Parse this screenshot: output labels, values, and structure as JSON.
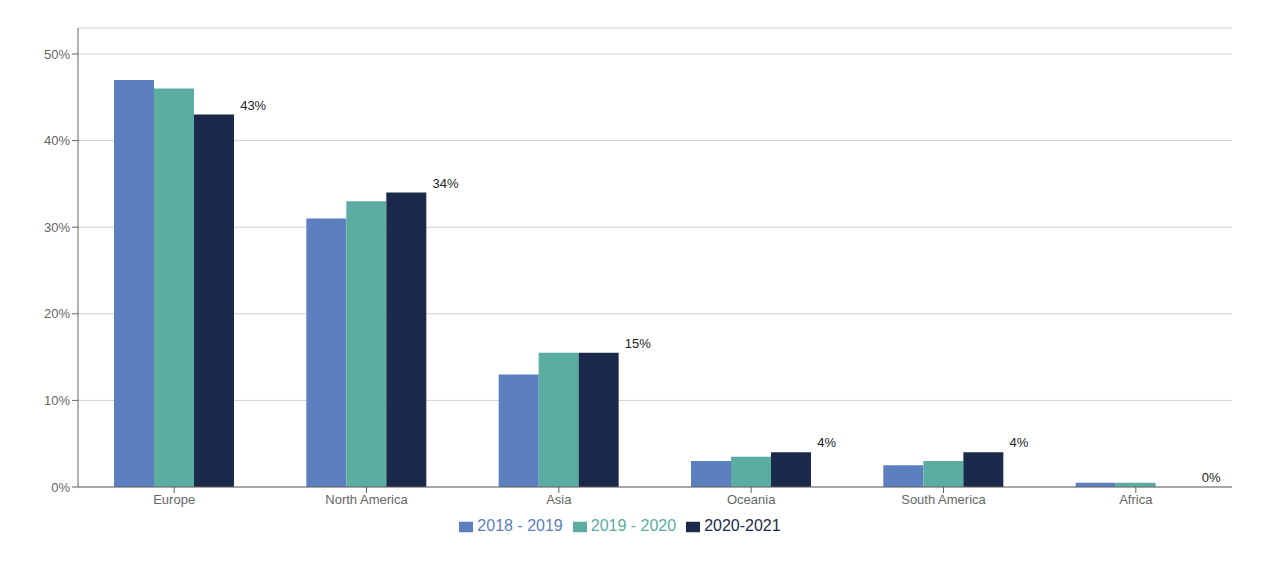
{
  "chart_data": {
    "type": "bar",
    "categories": [
      "Europe",
      "North America",
      "Asia",
      "Oceania",
      "South America",
      "Africa"
    ],
    "series": [
      {
        "name": "2018 - 2019",
        "color": "#5B7FBF",
        "values": [
          47,
          31,
          13,
          3,
          2.5,
          0.5
        ]
      },
      {
        "name": "2019 - 2020",
        "color": "#5AADA0",
        "values": [
          46,
          33,
          15.5,
          3.5,
          3,
          0.5
        ]
      },
      {
        "name": "2020-2021",
        "color": "#1B2A4A",
        "values": [
          43,
          34,
          15.5,
          4,
          4,
          0
        ]
      }
    ],
    "annotations": [
      {
        "x": "Europe",
        "y": 43,
        "text": "43%"
      },
      {
        "x": "North America",
        "y": 34,
        "text": "34%"
      },
      {
        "x": "Asia",
        "y": 15.5,
        "text": "15%"
      },
      {
        "x": "Oceania",
        "y": 4,
        "text": "4%"
      },
      {
        "x": "South America",
        "y": 4,
        "text": "4%"
      },
      {
        "x": "Africa",
        "y": 0,
        "text": "0%"
      }
    ],
    "ylim": [
      0,
      53
    ],
    "yticks": [
      {
        "value": 0,
        "label": "0%"
      },
      {
        "value": 10,
        "label": "10%"
      },
      {
        "value": 20,
        "label": "20%"
      },
      {
        "value": 30,
        "label": "30%"
      },
      {
        "value": 40,
        "label": "40%"
      },
      {
        "value": 50,
        "label": "50%"
      }
    ],
    "grid": true,
    "legend": "bottom"
  }
}
